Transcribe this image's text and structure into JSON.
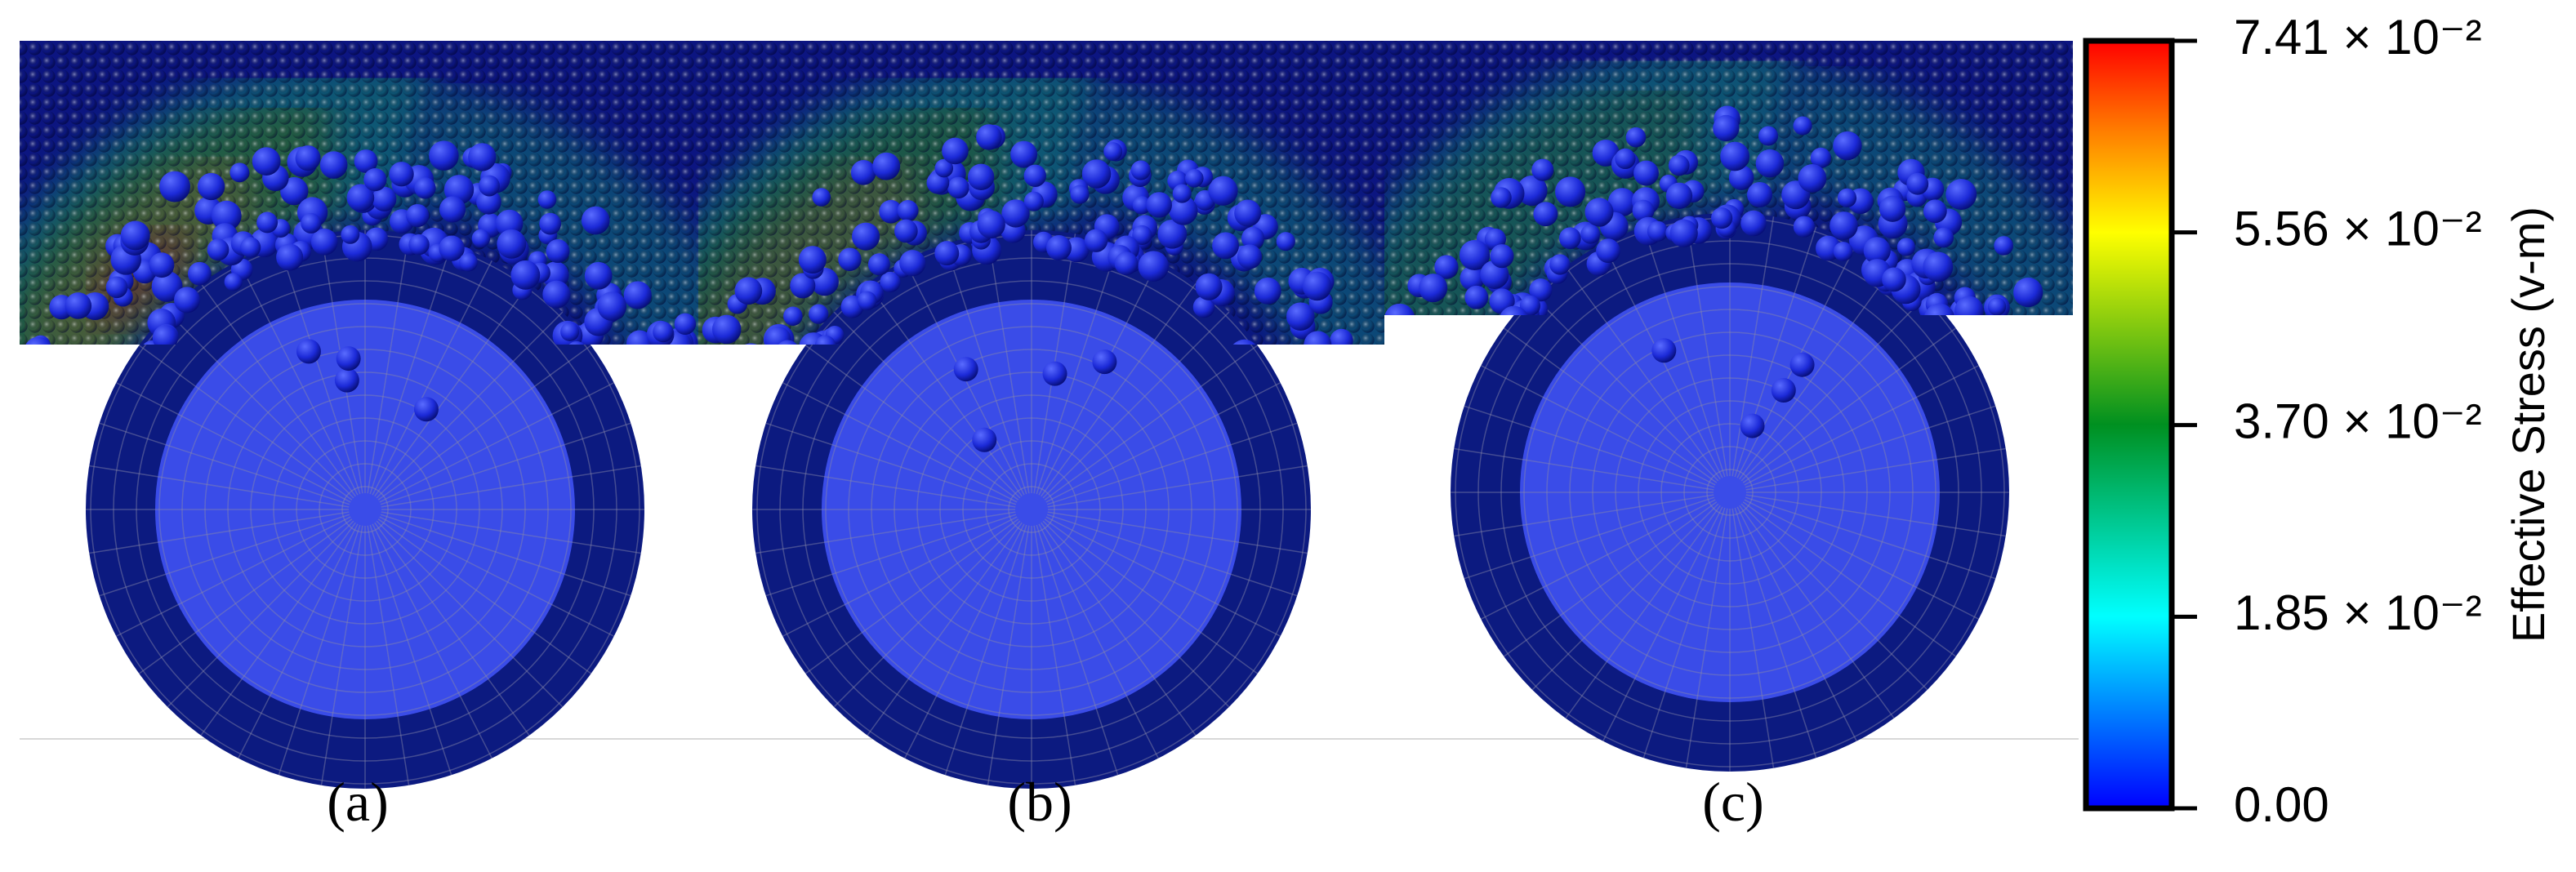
{
  "panels": [
    {
      "label": "(a)"
    },
    {
      "label": "(b)"
    },
    {
      "label": "(c)"
    }
  ],
  "colorbar": {
    "title": "Effective Stress (v-m)",
    "lim": [
      0,
      0.0741
    ],
    "ticks": [
      {
        "value": 0,
        "label": "0.00"
      },
      {
        "value": 0.0185,
        "label": "1.85 × 10⁻²"
      },
      {
        "value": 0.037,
        "label": "3.70 × 10⁻²"
      },
      {
        "value": 0.0556,
        "label": "5.56 × 10⁻²"
      },
      {
        "value": 0.0741,
        "label": "7.41 × 10⁻²"
      }
    ]
  }
}
